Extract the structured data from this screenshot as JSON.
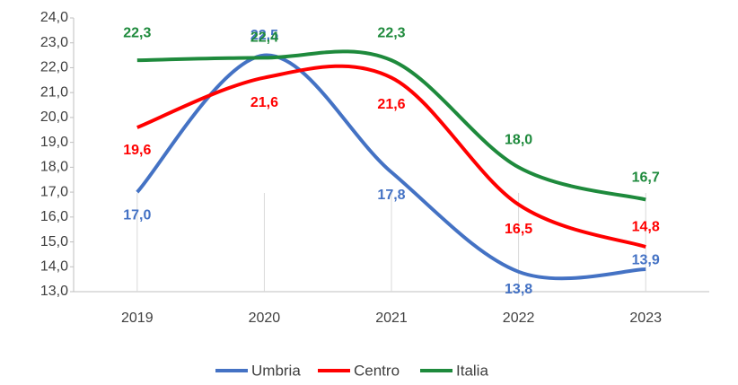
{
  "chart_data": {
    "type": "line",
    "categories": [
      "2019",
      "2020",
      "2021",
      "2022",
      "2023"
    ],
    "series": [
      {
        "name": "Umbria",
        "color": "#4472c4",
        "values": [
          17.0,
          22.5,
          17.8,
          13.8,
          13.9
        ],
        "value_labels": [
          "17,0",
          "22,5",
          "17,8",
          "13,8",
          "13,9"
        ]
      },
      {
        "name": "Centro",
        "color": "#ff0000",
        "values": [
          19.6,
          21.6,
          21.6,
          16.5,
          14.8
        ],
        "value_labels": [
          "19,6",
          "21,6",
          "21,6",
          "16,5",
          "14,8"
        ]
      },
      {
        "name": "Italia",
        "color": "#1e8a3c",
        "values": [
          22.3,
          22.4,
          22.3,
          18.0,
          16.7
        ],
        "value_labels": [
          "22,3",
          "22,4",
          "22,3",
          "18,0",
          "16,7"
        ]
      }
    ],
    "ylim": [
      13.0,
      24.0
    ],
    "yticks": [
      {
        "value": 13.0,
        "label": "13,0"
      },
      {
        "value": 14.0,
        "label": "14,0"
      },
      {
        "value": 15.0,
        "label": "15,0"
      },
      {
        "value": 16.0,
        "label": "16,0"
      },
      {
        "value": 17.0,
        "label": "17,0"
      },
      {
        "value": 18.0,
        "label": "18,0"
      },
      {
        "value": 19.0,
        "label": "19,0"
      },
      {
        "value": 20.0,
        "label": "20,0"
      },
      {
        "value": 21.0,
        "label": "21,0"
      },
      {
        "value": 22.0,
        "label": "22,0"
      },
      {
        "value": 23.0,
        "label": "23,0"
      },
      {
        "value": 24.0,
        "label": "24,0"
      }
    ],
    "grid": false,
    "legend": "bottom"
  }
}
